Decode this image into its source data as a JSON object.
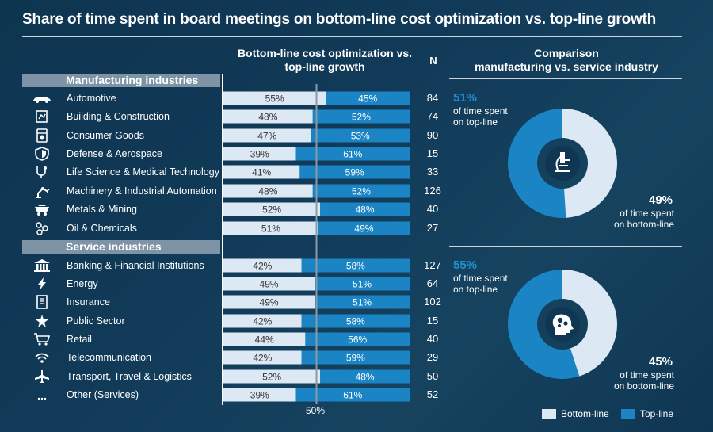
{
  "title": "Share of time spent in board meetings on bottom-line cost optimization vs. top-line growth",
  "headers": {
    "chart_line1": "Bottom-line cost optimization vs.",
    "chart_line2": "top-line growth",
    "n": "N",
    "comparison_line1": "Comparison",
    "comparison_line2": "manufacturing vs. service industry"
  },
  "groups": {
    "manufacturing": "Manufacturing industries",
    "service": "Service industries"
  },
  "colors": {
    "bottom_line": "#dce8f4",
    "top_line": "#1a84c4",
    "accent": "#1f8fcf"
  },
  "chart_data": {
    "type": "bar",
    "orientation": "horizontal-stacked-percent",
    "series": [
      {
        "name": "Bottom-line",
        "values": [
          55,
          48,
          47,
          39,
          41,
          48,
          52,
          51,
          42,
          49,
          49,
          42,
          44,
          42,
          52,
          39
        ]
      },
      {
        "name": "Top-line",
        "values": [
          45,
          52,
          53,
          61,
          59,
          52,
          48,
          49,
          58,
          51,
          51,
          58,
          56,
          59,
          48,
          61
        ]
      }
    ],
    "reference_label": "50%",
    "rows": [
      {
        "group": "manufacturing",
        "label": "Automotive",
        "icon": "car-icon",
        "bottom": 55,
        "top": 45,
        "n": 84,
        "bottom_label": "55%",
        "top_label": "45%"
      },
      {
        "group": "manufacturing",
        "label": "Building & Construction",
        "icon": "building-icon",
        "bottom": 48,
        "top": 52,
        "n": 74,
        "bottom_label": "48%",
        "top_label": "52%"
      },
      {
        "group": "manufacturing",
        "label": "Consumer Goods",
        "icon": "appliance-icon",
        "bottom": 47,
        "top": 53,
        "n": 90,
        "bottom_label": "47%",
        "top_label": "53%"
      },
      {
        "group": "manufacturing",
        "label": "Defense & Aerospace",
        "icon": "shield-icon",
        "bottom": 39,
        "top": 61,
        "n": 15,
        "bottom_label": "39%",
        "top_label": "61%"
      },
      {
        "group": "manufacturing",
        "label": "Life Science & Medical Technology",
        "icon": "stethoscope-icon",
        "bottom": 41,
        "top": 59,
        "n": 33,
        "bottom_label": "41%",
        "top_label": "59%"
      },
      {
        "group": "manufacturing",
        "label": "Machinery & Industrial Automation",
        "icon": "robot-arm-icon",
        "bottom": 48,
        "top": 52,
        "n": 126,
        "bottom_label": "48%",
        "top_label": "52%"
      },
      {
        "group": "manufacturing",
        "label": "Metals & Mining",
        "icon": "mine-cart-icon",
        "bottom": 52,
        "top": 48,
        "n": 40,
        "bottom_label": "52%",
        "top_label": "48%"
      },
      {
        "group": "manufacturing",
        "label": "Oil & Chemicals",
        "icon": "molecule-icon",
        "bottom": 51,
        "top": 49,
        "n": 27,
        "bottom_label": "51%",
        "top_label": "49%"
      },
      {
        "group": "service",
        "label": "Banking & Financial Institutions",
        "icon": "bank-icon",
        "bottom": 42,
        "top": 58,
        "n": 127,
        "bottom_label": "42%",
        "top_label": "58%"
      },
      {
        "group": "service",
        "label": "Energy",
        "icon": "lightning-icon",
        "bottom": 49,
        "top": 51,
        "n": 64,
        "bottom_label": "49%",
        "top_label": "51%"
      },
      {
        "group": "service",
        "label": "Insurance",
        "icon": "document-icon",
        "bottom": 49,
        "top": 51,
        "n": 102,
        "bottom_label": "49%",
        "top_label": "51%"
      },
      {
        "group": "service",
        "label": "Public Sector",
        "icon": "eu-stars-icon",
        "bottom": 42,
        "top": 58,
        "n": 15,
        "bottom_label": "42%",
        "top_label": "58%"
      },
      {
        "group": "service",
        "label": "Retail",
        "icon": "shopping-cart-icon",
        "bottom": 44,
        "top": 56,
        "n": 40,
        "bottom_label": "44%",
        "top_label": "56%"
      },
      {
        "group": "service",
        "label": "Telecommunication",
        "icon": "wifi-icon",
        "bottom": 42,
        "top": 59,
        "n": 29,
        "bottom_label": "42%",
        "top_label": "59%"
      },
      {
        "group": "service",
        "label": "Transport, Travel & Logistics",
        "icon": "airplane-icon",
        "bottom": 52,
        "top": 48,
        "n": 50,
        "bottom_label": "52%",
        "top_label": "48%"
      },
      {
        "group": "service",
        "label": "Other (Services)",
        "icon": "ellipsis-icon",
        "bottom": 39,
        "top": 61,
        "n": 52,
        "bottom_label": "39%",
        "top_label": "61%"
      }
    ],
    "donuts": [
      {
        "name": "manufacturing",
        "icon": "microscope-icon",
        "top": 51,
        "bottom": 49,
        "top_pct": "51%",
        "bottom_pct": "49%",
        "top_text1": "of time spent",
        "top_text2": "on top-line",
        "bottom_text1": "of time spent",
        "bottom_text2": "on bottom-line"
      },
      {
        "name": "service",
        "icon": "head-gears-icon",
        "top": 55,
        "bottom": 45,
        "top_pct": "55%",
        "bottom_pct": "45%",
        "top_text1": "of time spent",
        "top_text2": "on top-line",
        "bottom_text1": "of time spent",
        "bottom_text2": "on bottom-line"
      }
    ],
    "legend": [
      {
        "name": "Bottom-line",
        "color": "#dce8f4"
      },
      {
        "name": "Top-line",
        "color": "#1a84c4"
      }
    ]
  }
}
